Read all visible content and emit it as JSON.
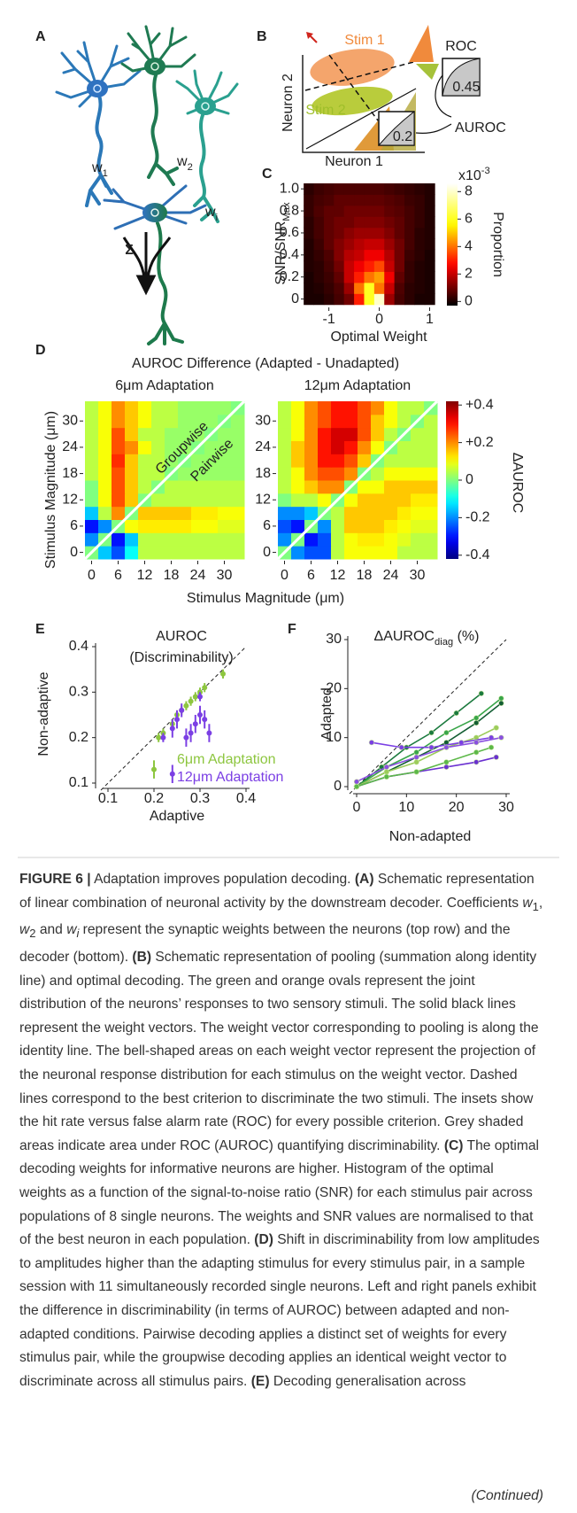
{
  "panels": {
    "A": {
      "label": "A",
      "weights": [
        {
          "main": "w",
          "sub": "1"
        },
        {
          "main": "w",
          "sub": "2"
        },
        {
          "main": "w",
          "sub": "i"
        }
      ],
      "sum": "Σ"
    },
    "B": {
      "label": "B",
      "x_label": "Neuron 1",
      "y_label": "Neuron 2",
      "stim1": "Stim 1",
      "stim2": "Stim 2",
      "roc": "ROC",
      "auroc": "AUROC",
      "inset_values": [
        0.45,
        0.2
      ]
    },
    "C": {
      "label": "C",
      "type": "heatmap",
      "x_label": "Optimal Weight",
      "y_label": {
        "main": "SNR/SNR",
        "sub": "Max"
      },
      "xlim": [
        -1.45,
        1.15
      ],
      "ylim": [
        -0.06,
        1.05
      ],
      "xticks": [
        -1,
        0,
        1
      ],
      "yticks": [
        0,
        0.2,
        0.4,
        0.6,
        0.8,
        {
          "value": 1,
          "label": "1.0"
        }
      ],
      "x": [
        -1.4,
        -1.2,
        -1.0,
        -0.8,
        -0.6,
        -0.4,
        -0.2,
        0,
        0.2,
        0.4,
        0.6,
        0.8,
        1.0
      ],
      "y": [
        0,
        0.1,
        0.2,
        0.3,
        0.4,
        0.5,
        0.6,
        0.7,
        0.8,
        0.9,
        1.0
      ],
      "z": [
        [
          0,
          0,
          0.2,
          0.5,
          1,
          3,
          6,
          8,
          1.5,
          0.5,
          0.2,
          0,
          0
        ],
        [
          0,
          0.1,
          0.3,
          0.6,
          1.5,
          4,
          6,
          4,
          2,
          0.6,
          0.2,
          0.1,
          0
        ],
        [
          0,
          0.2,
          0.4,
          0.8,
          2,
          3,
          4,
          4.5,
          2.5,
          0.8,
          0.3,
          0.1,
          0
        ],
        [
          0.1,
          0.2,
          0.5,
          1,
          2,
          2.5,
          3,
          3.5,
          2,
          1,
          0.3,
          0.1,
          0
        ],
        [
          0.1,
          0.3,
          0.6,
          1.2,
          1.8,
          2,
          2.5,
          2.5,
          1.8,
          1,
          0.4,
          0.2,
          0
        ],
        [
          0.1,
          0.4,
          0.8,
          1.2,
          1.5,
          1.8,
          2,
          2,
          1.5,
          1,
          0.5,
          0.2,
          0.1
        ],
        [
          0.2,
          0.5,
          0.8,
          1,
          1.3,
          1.5,
          1.5,
          1.5,
          1.2,
          0.8,
          0.5,
          0.2,
          0.1
        ],
        [
          0.2,
          0.5,
          0.8,
          1,
          1,
          1.2,
          1.2,
          1.2,
          1,
          0.8,
          0.5,
          0.3,
          0.1
        ],
        [
          0.3,
          0.6,
          0.8,
          0.8,
          1,
          1,
          1,
          1,
          0.8,
          0.7,
          0.5,
          0.3,
          0.1
        ],
        [
          0.3,
          0.5,
          0.6,
          0.8,
          0.8,
          0.8,
          0.8,
          0.8,
          0.7,
          0.6,
          0.4,
          0.3,
          0.1
        ],
        [
          0.2,
          0.4,
          0.5,
          0.6,
          0.6,
          0.6,
          0.6,
          0.6,
          0.5,
          0.4,
          0.3,
          0.2,
          0.1
        ]
      ],
      "colorbar": {
        "label": "Proportion",
        "multiplier": {
          "main": "x10",
          "sup": "-3"
        },
        "colormap": "hot",
        "clim": [
          -0.3,
          8.6
        ],
        "ticks": [
          0,
          2,
          4,
          6,
          8
        ]
      }
    },
    "D": {
      "label": "D",
      "type": "heatmap-pair",
      "title": "AUROC Difference (Adapted - Unadapted)",
      "x_label": "Stimulus Magnitude (μm)",
      "y_label": "Stimulus Magnitude (μm)",
      "xlim": [
        -1.5,
        34.5
      ],
      "ylim": [
        -1.5,
        34.5
      ],
      "xticks": [
        0,
        6,
        12,
        18,
        24,
        30
      ],
      "yticks": [
        0,
        6,
        12,
        18,
        24,
        30
      ],
      "x": [
        0,
        3,
        6,
        9,
        12,
        15,
        18,
        21,
        24,
        27,
        30,
        33
      ],
      "y": [
        0,
        3,
        6,
        9,
        12,
        15,
        18,
        21,
        24,
        27,
        30,
        33
      ],
      "diagonal_labels": [
        "Groupwise",
        "Pairwise"
      ],
      "maps": [
        {
          "title": "6μm Adaptation",
          "z": [
            [
              0,
              -0.15,
              -0.25,
              -0.1,
              0.05,
              0.05,
              0.05,
              0.05,
              0.05,
              0.05,
              0.05,
              0.05
            ],
            [
              -0.2,
              0,
              -0.3,
              -0.15,
              0.05,
              0.05,
              0.05,
              0.05,
              0.05,
              0.05,
              0.05,
              0.05
            ],
            [
              -0.3,
              -0.2,
              0,
              0.1,
              0.12,
              0.12,
              0.12,
              0.12,
              0.1,
              0.1,
              0.08,
              0.08
            ],
            [
              -0.15,
              0.05,
              0.2,
              0,
              0.15,
              0.15,
              0.15,
              0.15,
              0.12,
              0.12,
              0.1,
              0.1
            ],
            [
              0,
              0.1,
              0.25,
              0.15,
              0,
              0.05,
              0.05,
              0.05,
              0.05,
              0.05,
              0.05,
              0.05
            ],
            [
              0,
              0.1,
              0.25,
              0.15,
              0.05,
              0,
              0.05,
              0.05,
              0.05,
              0.05,
              0.05,
              0.05
            ],
            [
              0.05,
              0.1,
              0.25,
              0.15,
              0.05,
              0.05,
              0,
              0.02,
              0.02,
              0.02,
              0.02,
              0.02
            ],
            [
              0.05,
              0.1,
              0.28,
              0.15,
              0.05,
              0.05,
              0.02,
              0,
              0.02,
              0.02,
              0.02,
              0.02
            ],
            [
              0.05,
              0.1,
              0.25,
              0.2,
              0.1,
              0.05,
              0.02,
              0.02,
              0,
              0.02,
              0.02,
              0.02
            ],
            [
              0.05,
              0.1,
              0.25,
              0.15,
              0.05,
              0.05,
              0.02,
              0.02,
              0.02,
              0,
              0.02,
              0.02
            ],
            [
              0.05,
              0.1,
              0.2,
              0.15,
              0.1,
              0.05,
              0.05,
              0.02,
              0.02,
              0.02,
              0,
              0.02
            ],
            [
              0.05,
              0.1,
              0.2,
              0.15,
              0.1,
              0.05,
              0.05,
              0.02,
              0.02,
              0.02,
              0.02,
              0
            ]
          ]
        },
        {
          "title": "12μm Adaptation",
          "z": [
            [
              0,
              -0.2,
              -0.25,
              -0.25,
              0.05,
              0.1,
              0.1,
              0.1,
              0.1,
              0.05,
              0.05,
              0.05
            ],
            [
              -0.2,
              0,
              -0.3,
              -0.25,
              0.05,
              0.1,
              0.12,
              0.12,
              0.1,
              0.08,
              0.05,
              0.05
            ],
            [
              -0.25,
              -0.3,
              0,
              -0.2,
              0.05,
              0.15,
              0.15,
              0.15,
              0.12,
              0.1,
              0.08,
              0.08
            ],
            [
              -0.2,
              -0.2,
              -0.15,
              0,
              0.05,
              0.15,
              0.15,
              0.15,
              0.15,
              0.12,
              0.1,
              0.1
            ],
            [
              0,
              0.05,
              0.05,
              0.1,
              0,
              0.1,
              0.15,
              0.15,
              0.15,
              0.15,
              0.12,
              0.12
            ],
            [
              0.05,
              0.1,
              0.15,
              0.2,
              0.2,
              0,
              0.1,
              0.1,
              0.15,
              0.15,
              0.15,
              0.15
            ],
            [
              0.05,
              0.1,
              0.2,
              0.25,
              0.25,
              0.2,
              0,
              0.05,
              0.1,
              0.1,
              0.1,
              0.1
            ],
            [
              0.05,
              0.15,
              0.2,
              0.3,
              0.3,
              0.25,
              0.15,
              0,
              0.05,
              0.05,
              0.05,
              0.05
            ],
            [
              0.05,
              0.15,
              0.2,
              0.3,
              0.35,
              0.3,
              0.2,
              0.1,
              0,
              0.05,
              0.05,
              0.05
            ],
            [
              0.05,
              0.1,
              0.2,
              0.3,
              0.35,
              0.35,
              0.25,
              0.15,
              0.05,
              0,
              0.05,
              0.05
            ],
            [
              0.05,
              0.1,
              0.2,
              0.25,
              0.3,
              0.3,
              0.25,
              0.15,
              0.1,
              0.05,
              0,
              0.05
            ],
            [
              0.05,
              0.1,
              0.2,
              0.25,
              0.3,
              0.3,
              0.25,
              0.2,
              0.1,
              0.05,
              0.05,
              0
            ]
          ]
        }
      ],
      "colorbar": {
        "label": "ΔAUROC",
        "colormap": "jet",
        "clim": [
          -0.42,
          0.42
        ],
        "ticks": [
          {
            "value": 0.4,
            "label": "+0.4"
          },
          {
            "value": 0.2,
            "label": "+0.2"
          },
          0,
          -0.2,
          -0.4
        ]
      }
    },
    "E": {
      "label": "E",
      "type": "scatter",
      "title": [
        "AUROC",
        "(Discriminability)"
      ],
      "x_label": "Adaptive",
      "y_label": "Non-adaptive",
      "xlim": [
        0.1,
        0.4
      ],
      "ylim": [
        0.1,
        0.4
      ],
      "xticks": [
        0.1,
        0.2,
        0.3,
        0.4
      ],
      "yticks": [
        0.1,
        0.2,
        0.3,
        0.4
      ],
      "series": [
        {
          "name": "6μm Adaptation",
          "color": "#8dc63f",
          "x": [
            0.2,
            0.21,
            0.22,
            0.24,
            0.25,
            0.26,
            0.27,
            0.28,
            0.29,
            0.3,
            0.31,
            0.35
          ],
          "values": [
            0.13,
            0.2,
            0.21,
            0.23,
            0.25,
            0.26,
            0.27,
            0.28,
            0.29,
            0.3,
            0.31,
            0.34
          ],
          "errors": [
            0.02,
            0.01,
            0.01,
            0.01,
            0.01,
            0.01,
            0.01,
            0.01,
            0.01,
            0.01,
            0.01,
            0.01
          ]
        },
        {
          "name": "12μm Adaptation",
          "color": "#7b3fe4",
          "x": [
            0.24,
            0.22,
            0.24,
            0.25,
            0.26,
            0.27,
            0.28,
            0.29,
            0.3,
            0.31,
            0.32,
            0.3
          ],
          "values": [
            0.12,
            0.2,
            0.22,
            0.24,
            0.26,
            0.2,
            0.21,
            0.23,
            0.25,
            0.24,
            0.21,
            0.29
          ],
          "errors": [
            0.02,
            0.01,
            0.02,
            0.02,
            0.015,
            0.02,
            0.02,
            0.02,
            0.02,
            0.02,
            0.02,
            0.01
          ]
        }
      ]
    },
    "F": {
      "label": "F",
      "type": "line",
      "title": {
        "main": "ΔAUROC",
        "sub": "diag",
        "tail": " (%)"
      },
      "x_label": "Non-adapted",
      "y_label": "Adapted",
      "xlim": [
        0,
        30
      ],
      "ylim": [
        0,
        30
      ],
      "xticks": [
        0,
        10,
        20,
        30
      ],
      "yticks": [
        0,
        10,
        20,
        30
      ],
      "series": [
        {
          "color": "#1b7a3e",
          "x": [
            0,
            5,
            10,
            15,
            20,
            25
          ],
          "values": [
            0,
            4,
            8,
            11,
            15,
            19
          ]
        },
        {
          "color": "#3aa64a",
          "x": [
            0,
            6,
            12,
            18,
            24,
            29
          ],
          "values": [
            0,
            4,
            7,
            11,
            14,
            18
          ]
        },
        {
          "color": "#135e33",
          "x": [
            0,
            6,
            12,
            18,
            24,
            29
          ],
          "values": [
            0,
            3,
            6,
            9,
            13,
            17
          ]
        },
        {
          "color": "#9ccc5a",
          "x": [
            0,
            6,
            12,
            18,
            24,
            28
          ],
          "values": [
            0,
            3,
            5,
            8,
            10,
            12
          ]
        },
        {
          "color": "#7b3fe4",
          "x": [
            3,
            9,
            15,
            21,
            27
          ],
          "values": [
            9,
            8,
            8,
            9,
            10
          ]
        },
        {
          "color": "#8a4fe0",
          "x": [
            0,
            6,
            12,
            18,
            24,
            29
          ],
          "values": [
            1,
            4,
            6,
            8,
            9,
            10
          ]
        },
        {
          "color": "#6a30d0",
          "x": [
            0,
            6,
            12,
            18,
            24,
            28
          ],
          "values": [
            0,
            2,
            3,
            4,
            5,
            6
          ]
        },
        {
          "color": "#5cb848",
          "x": [
            0,
            6,
            12,
            18,
            24,
            27
          ],
          "values": [
            0,
            2,
            3,
            5,
            7,
            8
          ]
        }
      ]
    }
  },
  "caption": {
    "runs": [
      {
        "text": "FIGURE 6 |",
        "style": "b"
      },
      {
        "text": " Adaptation improves population decoding. "
      },
      {
        "text": "(A)",
        "style": "b"
      },
      {
        "text": " Schematic representation of linear combination of neuronal activity by the downstream decoder. Coefficients "
      },
      {
        "text": "w",
        "style": "i"
      },
      {
        "text": "1",
        "style": "sub"
      },
      {
        "text": ", "
      },
      {
        "text": "w",
        "style": "i"
      },
      {
        "text": "2",
        "style": "sub"
      },
      {
        "text": " and "
      },
      {
        "text": "w",
        "style": "i"
      },
      {
        "text": "i",
        "style": "isub"
      },
      {
        "text": " represent the synaptic weights between the neurons (top row) and the decoder (bottom). "
      },
      {
        "text": "(B)",
        "style": "b"
      },
      {
        "text": " Schematic representation of pooling (summation along identity line) and optimal decoding. The green and orange ovals represent the joint distribution of the neurons’ responses to two sensory stimuli. The solid black lines represent the weight vectors. The weight vector corresponding to pooling is along the identity line. The bell-shaped areas on each weight vector represent the projection of the neuronal response distribution for each stimulus on the weight vector. Dashed lines correspond to the best criterion to discriminate the two stimuli. The insets show the hit rate versus false alarm rate (ROC) for every possible criterion. Grey shaded areas indicate area under ROC (AUROC) quantifying discriminability. "
      },
      {
        "text": "(C)",
        "style": "b"
      },
      {
        "text": " The optimal decoding weights for informative neurons are higher. Histogram of the optimal weights as a function of the signal-to-noise ratio (SNR) for each stimulus pair across populations of 8 single neurons. The weights and SNR values are normalised to that of the best neuron in each population. "
      },
      {
        "text": "(D)",
        "style": "b"
      },
      {
        "text": " Shift in discriminability from low amplitudes to amplitudes higher than the adapting stimulus for every stimulus pair, in a sample session with 11 simultaneously recorded single neurons. Left and right panels exhibit the difference in discriminability (in terms of AUROC) between adapted and non-adapted conditions. Pairwise decoding applies a distinct set of weights for every stimulus pair, while the groupwise decoding applies an identical weight vector to discriminate across all stimulus pairs. "
      },
      {
        "text": "(E)",
        "style": "b"
      },
      {
        "text": " Decoding generalisation across"
      }
    ],
    "continued": "(Continued)"
  }
}
